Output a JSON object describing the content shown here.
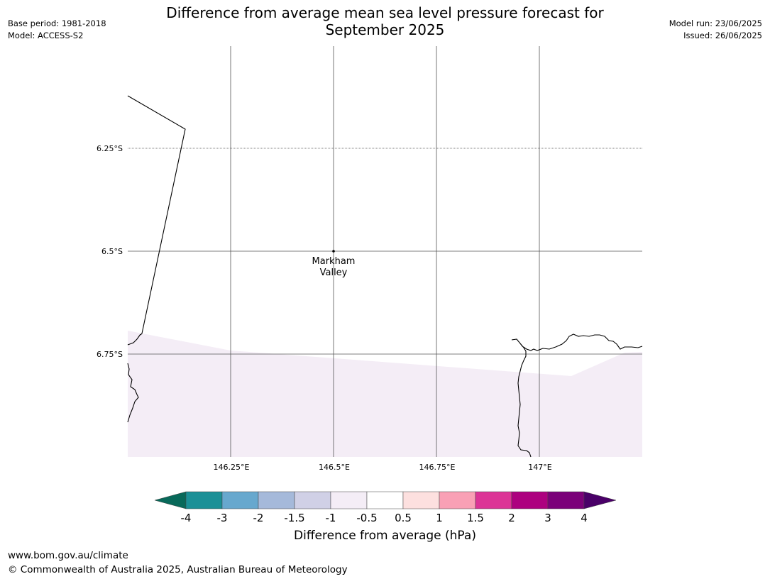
{
  "header": {
    "title_line1": "Difference from average mean sea level pressure forecast for",
    "title_line2": "September 2025",
    "base_period": "Base period: 1981-2018",
    "model": "Model: ACCESS-S2",
    "model_run": "Model run: 23/06/2025",
    "issued": "Issued: 26/06/2025"
  },
  "map": {
    "lat_labels": [
      "6.25°S",
      "6.5°S",
      "6.75°S"
    ],
    "lon_labels": [
      "146.25°E",
      "146.5°E",
      "146.75°E",
      "147°E"
    ],
    "place": {
      "name_line1": "Markham",
      "name_line2": "Valley"
    },
    "fill_category": "-1 to -0.5",
    "fill_color": "#f4edf6"
  },
  "colorbar": {
    "title": "Difference from average (hPa)",
    "ticks": [
      "-4",
      "-3",
      "-2",
      "-1.5",
      "-1",
      "-0.5",
      "0.5",
      "1",
      "1.5",
      "2",
      "3",
      "4"
    ],
    "colors": [
      "#08695a",
      "#1b9097",
      "#67a8ce",
      "#a5b9da",
      "#d0d0e6",
      "#f4edf6",
      "#ffffff",
      "#fde0df",
      "#f9a0b5",
      "#dc3496",
      "#ad017f",
      "#7b0179",
      "#4a0068"
    ]
  },
  "footer": {
    "website": "www.bom.gov.au/climate",
    "copyright": "© Commonwealth of Australia 2025, Australian Bureau of Meteorology"
  }
}
